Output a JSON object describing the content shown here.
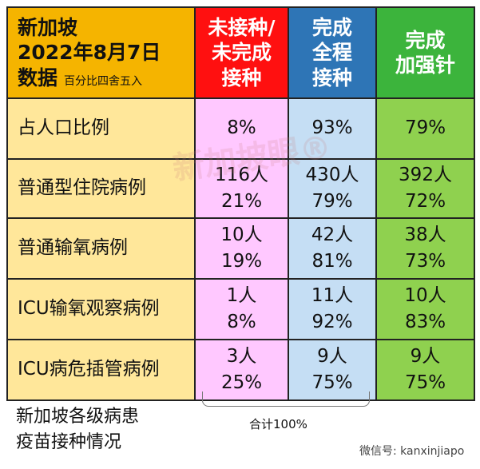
{
  "header": {
    "title_lines": [
      "新加坡",
      "2022年8月7日",
      "数据"
    ],
    "note": "百分比四舍五入",
    "columns": [
      [
        "未接种/",
        "未完成",
        "接种"
      ],
      [
        "完成",
        "全程",
        "接种"
      ],
      [
        "完成",
        "加强针"
      ]
    ]
  },
  "rows": [
    {
      "label": "占人口比例",
      "cells": [
        [
          "8%"
        ],
        [
          "93%"
        ],
        [
          "79%"
        ]
      ]
    },
    {
      "label": "普通型住院病例",
      "cells": [
        [
          "116人",
          "21%"
        ],
        [
          "430人",
          "79%"
        ],
        [
          "392人",
          "72%"
        ]
      ]
    },
    {
      "label": "普通输氧病例",
      "cells": [
        [
          "10人",
          "19%"
        ],
        [
          "42人",
          "81%"
        ],
        [
          "38人",
          "73%"
        ]
      ]
    },
    {
      "label": "ICU输氧观察病例",
      "cells": [
        [
          "1人",
          "8%"
        ],
        [
          "11人",
          "92%"
        ],
        [
          "10人",
          "83%"
        ]
      ]
    },
    {
      "label": "ICU病危插管病例",
      "cells": [
        [
          "3人",
          "25%"
        ],
        [
          "9人",
          "75%"
        ],
        [
          "9人",
          "75%"
        ]
      ]
    }
  ],
  "footer": {
    "caption_lines": [
      "新加坡各级病患",
      "疫苗接种情况"
    ],
    "bracket_label": "合计100%"
  },
  "watermark": "新加坡眼®",
  "wechat": "微信号: kanxinjiapo"
}
